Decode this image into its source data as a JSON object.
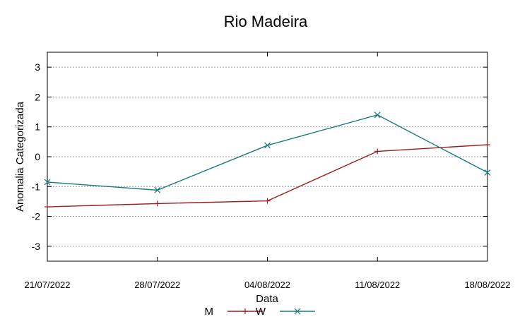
{
  "chart_data": {
    "type": "line",
    "title": "Rio Madeira",
    "xlabel": "Data",
    "ylabel": "Anomalia Categorizada",
    "ylim": [
      -3.5,
      3.5
    ],
    "yticks": [
      3,
      2,
      1,
      0,
      -1,
      -2,
      -3
    ],
    "x": [
      "21/07/2022",
      "28/07/2022",
      "04/08/2022",
      "11/08/2022",
      "18/08/2022"
    ],
    "grid": true,
    "legend_position": "bottom-center",
    "series": [
      {
        "name": "M",
        "color": "#9e1b1b",
        "marker": "plus",
        "values": [
          -1.68,
          -1.57,
          -1.48,
          0.18,
          0.4
        ]
      },
      {
        "name": "W",
        "color": "#1a7a80",
        "marker": "cross",
        "values": [
          -0.85,
          -1.12,
          0.38,
          1.4,
          -0.53
        ]
      }
    ]
  }
}
